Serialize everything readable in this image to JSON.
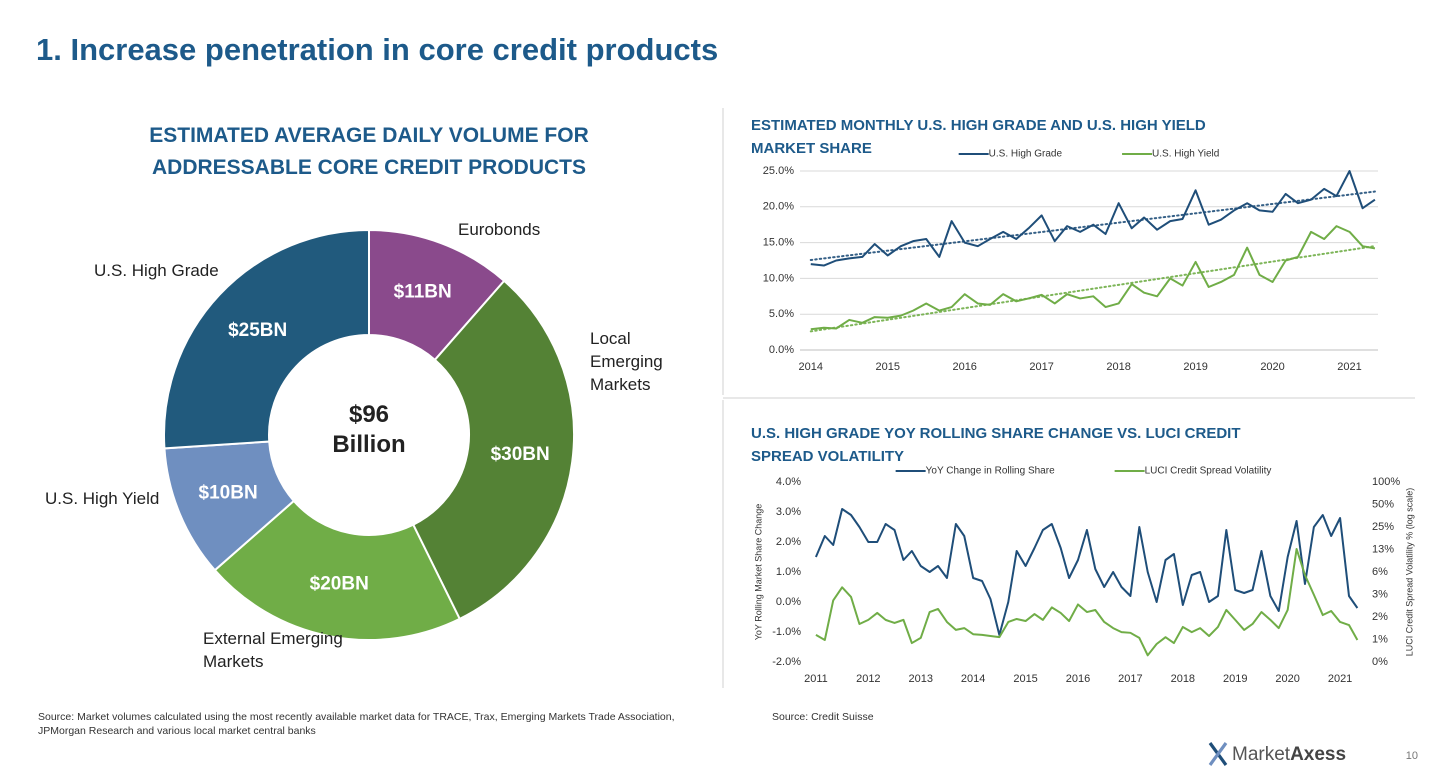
{
  "title": "1. Increase penetration in core credit products",
  "chart_data": [
    {
      "type": "pie",
      "donut": true,
      "title": "ESTIMATED AVERAGE DAILY VOLUME FOR ADDRESSABLE CORE CREDIT PRODUCTS",
      "categories": [
        "Eurobonds",
        "Local Emerging Markets",
        "External Emerging Markets",
        "U.S. High Yield",
        "U.S. High Grade"
      ],
      "values": [
        11,
        30,
        20,
        10,
        25
      ],
      "value_labels": [
        "$11BN",
        "$30BN",
        "$20BN",
        "$10BN",
        "$25BN"
      ],
      "colors": [
        "#8a4a8c",
        "#548235",
        "#70ad47",
        "#6f8fc0",
        "#215a7d"
      ],
      "center_label": "$96 Billion",
      "source": "Source:  Market volumes calculated using the most recently available market data for TRACE, Trax, Emerging Markets Trade Association, JPMorgan Research and various local market central banks"
    },
    {
      "type": "line",
      "title": "ESTIMATED MONTHLY U.S. HIGH GRADE AND U.S. HIGH YIELD MARKET SHARE",
      "x": [
        2014,
        2014.17,
        2014.33,
        2014.5,
        2014.67,
        2014.83,
        2015,
        2015.17,
        2015.33,
        2015.5,
        2015.67,
        2015.83,
        2016,
        2016.17,
        2016.33,
        2016.5,
        2016.67,
        2016.83,
        2017,
        2017.17,
        2017.33,
        2017.5,
        2017.67,
        2017.83,
        2018,
        2018.17,
        2018.33,
        2018.5,
        2018.67,
        2018.83,
        2019,
        2019.17,
        2019.33,
        2019.5,
        2019.67,
        2019.83,
        2020,
        2020.17,
        2020.33,
        2020.5,
        2020.67,
        2020.83,
        2021,
        2021.17,
        2021.33
      ],
      "series": [
        {
          "name": "U.S. High Grade",
          "color": "#1f4e79",
          "trendline": true,
          "values": [
            12.0,
            11.8,
            12.5,
            12.8,
            13.0,
            14.8,
            13.2,
            14.5,
            15.2,
            15.5,
            13.0,
            18.0,
            15.0,
            14.5,
            15.5,
            16.5,
            15.5,
            17.0,
            18.8,
            15.2,
            17.3,
            16.5,
            17.5,
            16.2,
            20.5,
            17.0,
            18.5,
            16.8,
            18.0,
            18.3,
            22.3,
            17.5,
            18.2,
            19.5,
            20.5,
            19.5,
            19.3,
            21.8,
            20.5,
            21.0,
            22.5,
            21.5,
            25.0,
            19.8,
            21.0
          ]
        },
        {
          "name": "U.S. High Yield",
          "color": "#70ad47",
          "trendline": true,
          "values": [
            2.9,
            3.1,
            3.0,
            4.2,
            3.8,
            4.6,
            4.5,
            4.8,
            5.5,
            6.5,
            5.5,
            6.0,
            7.8,
            6.5,
            6.3,
            7.8,
            6.8,
            7.2,
            7.7,
            6.5,
            7.8,
            7.2,
            7.5,
            6.0,
            6.5,
            9.2,
            8.0,
            7.5,
            10.0,
            9.0,
            12.3,
            8.8,
            9.5,
            10.5,
            14.3,
            10.5,
            9.5,
            12.5,
            13.0,
            16.5,
            15.5,
            17.3,
            16.5,
            14.5,
            14.2
          ]
        }
      ],
      "xlim": [
        2013.86,
        2021.37
      ],
      "xticks": [
        2014,
        2015,
        2016,
        2017,
        2018,
        2019,
        2020,
        2021
      ],
      "ylim": [
        0,
        25
      ],
      "yticks": [
        {
          "value": 0,
          "label": "0.0%"
        },
        {
          "value": 5,
          "label": "5.0%"
        },
        {
          "value": 10,
          "label": "10.0%"
        },
        {
          "value": 15,
          "label": "15.0%"
        },
        {
          "value": 20,
          "label": "20.0%"
        },
        {
          "value": 25,
          "label": "25.0%"
        }
      ],
      "grid": true,
      "legend": "upper center"
    },
    {
      "type": "line",
      "title": "U.S. HIGH GRADE YOY ROLLING SHARE CHANGE VS. LUCI CREDIT SPREAD VOLATILITY",
      "ylabel": "YoY Rolling Market Share Change",
      "y2label": "LUCI Credit Spread Volatility % (log scale)",
      "x": [
        2011,
        2011.17,
        2011.33,
        2011.5,
        2011.67,
        2011.83,
        2012,
        2012.17,
        2012.33,
        2012.5,
        2012.67,
        2012.83,
        2013,
        2013.17,
        2013.33,
        2013.5,
        2013.67,
        2013.83,
        2014,
        2014.17,
        2014.33,
        2014.5,
        2014.67,
        2014.83,
        2015,
        2015.17,
        2015.33,
        2015.5,
        2015.67,
        2015.83,
        2016,
        2016.17,
        2016.33,
        2016.5,
        2016.67,
        2016.83,
        2017,
        2017.17,
        2017.33,
        2017.5,
        2017.67,
        2017.83,
        2018,
        2018.17,
        2018.33,
        2018.5,
        2018.67,
        2018.83,
        2019,
        2019.17,
        2019.33,
        2019.5,
        2019.67,
        2019.83,
        2020,
        2020.17,
        2020.33,
        2020.5,
        2020.67,
        2020.83,
        2021,
        2021.17,
        2021.33
      ],
      "series": [
        {
          "name": "YoY Change in Rolling Share",
          "color": "#1f4e79",
          "values": [
            1.5,
            2.2,
            1.9,
            3.1,
            2.9,
            2.5,
            2.0,
            2.0,
            2.6,
            2.4,
            1.4,
            1.7,
            1.2,
            1.0,
            1.2,
            0.8,
            2.6,
            2.2,
            0.8,
            0.7,
            0.1,
            -1.1,
            0.0,
            1.7,
            1.2,
            1.8,
            2.4,
            2.6,
            1.8,
            0.8,
            1.4,
            2.4,
            1.1,
            0.5,
            1.0,
            0.5,
            0.2,
            2.5,
            1.0,
            0.0,
            1.4,
            1.6,
            -0.1,
            0.9,
            1.0,
            0.0,
            0.2,
            2.4,
            0.4,
            0.3,
            0.4,
            1.7,
            0.2,
            -0.3,
            1.5,
            2.7,
            0.6,
            2.5,
            2.9,
            2.2,
            2.8,
            0.2,
            -0.2
          ]
        },
        {
          "name": "LUCI Credit Spread Volatility",
          "color": "#70ad47",
          "axis": "y2",
          "values": [
            0.9,
            0.77,
            2.6,
            3.9,
            2.9,
            1.26,
            1.43,
            1.77,
            1.43,
            1.3,
            1.43,
            0.7,
            0.82,
            1.82,
            2.0,
            1.34,
            1.05,
            1.11,
            0.92,
            0.9,
            0.87,
            0.84,
            1.34,
            1.47,
            1.38,
            1.71,
            1.43,
            2.1,
            1.77,
            1.38,
            2.3,
            1.82,
            1.94,
            1.34,
            1.11,
            0.98,
            0.96,
            0.82,
            0.48,
            0.68,
            0.84,
            0.7,
            1.15,
            0.98,
            1.11,
            0.87,
            1.15,
            1.94,
            1.43,
            1.05,
            1.26,
            1.82,
            1.43,
            1.11,
            1.94,
            12.7,
            5.7,
            3.1,
            1.66,
            1.88,
            1.34,
            1.22,
            0.77
          ]
        }
      ],
      "xlim": [
        2010.83,
        2021.38
      ],
      "xticks": [
        2011,
        2012,
        2013,
        2014,
        2015,
        2016,
        2017,
        2018,
        2019,
        2020,
        2021
      ],
      "ylim": [
        -2,
        4
      ],
      "yticks": [
        {
          "value": -2,
          "label": "-2.0%"
        },
        {
          "value": -1,
          "label": "-1.0%"
        },
        {
          "value": 0,
          "label": "0.0%"
        },
        {
          "value": 1,
          "label": "1.0%"
        },
        {
          "value": 2,
          "label": "2.0%"
        },
        {
          "value": 3,
          "label": "3.0%"
        },
        {
          "value": 4,
          "label": "4.0%"
        }
      ],
      "y2lim": [
        0.390625,
        100
      ],
      "y2scale": "log",
      "y2ticks": [
        {
          "value": 0.390625,
          "label": "0%"
        },
        {
          "value": 0.78125,
          "label": "1%"
        },
        {
          "value": 1.5625,
          "label": "2%"
        },
        {
          "value": 3.125,
          "label": "3%"
        },
        {
          "value": 6.25,
          "label": "6%"
        },
        {
          "value": 12.5,
          "label": "13%"
        },
        {
          "value": 25,
          "label": "25%"
        },
        {
          "value": 50,
          "label": "50%"
        },
        {
          "value": 100,
          "label": "100%"
        }
      ],
      "grid": false,
      "legend": "upper center",
      "source": "Source: Credit Suisse"
    }
  ],
  "footer": {
    "logo_prefix": "Market",
    "logo_suffix": "Axess",
    "page": "10"
  }
}
